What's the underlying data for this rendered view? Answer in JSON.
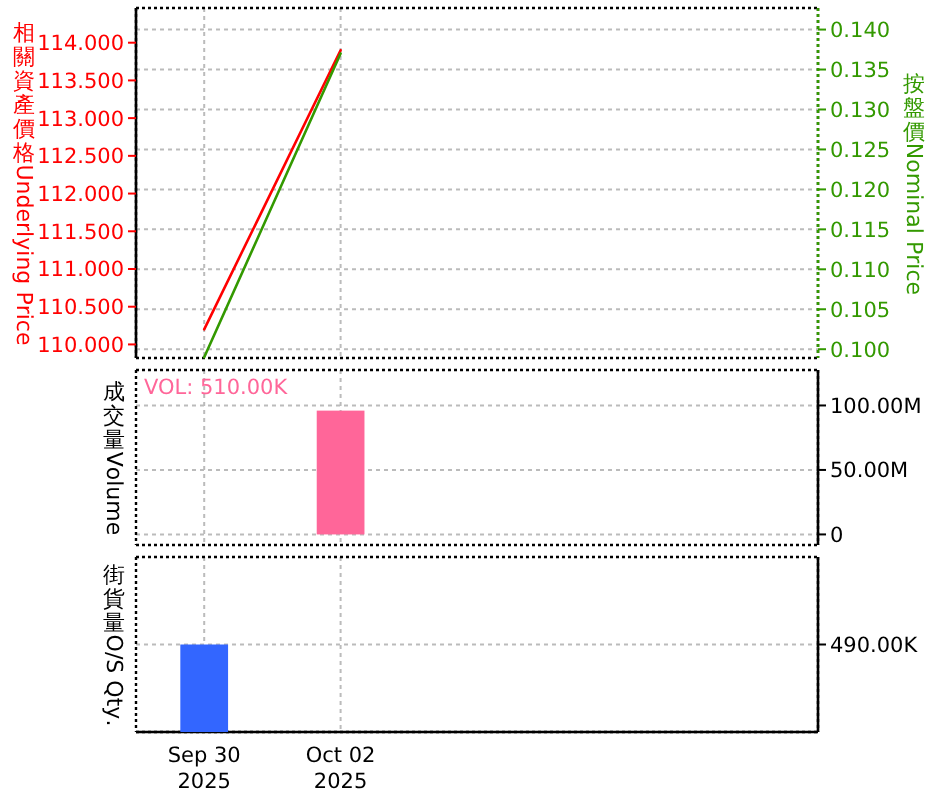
{
  "chart_data": [
    {
      "type": "line",
      "ylabel": "相關資產價格Underlying Price",
      "y2label": "按盤價Nominal Price",
      "x": [
        "2025-09-30",
        "2025-10-02"
      ],
      "xlim": [
        "2025-09-29",
        "2025-10-09"
      ],
      "xticks": [
        {
          "value": "2025-09-30",
          "label": null
        },
        {
          "value": "2025-10-02",
          "label": null
        }
      ],
      "ylim": [
        109.82,
        114.46
      ],
      "yticks": [
        {
          "value": 110,
          "label": "110.000"
        },
        {
          "value": 110.5,
          "label": "110.500"
        },
        {
          "value": 111,
          "label": "111.000"
        },
        {
          "value": 111.5,
          "label": "111.500"
        },
        {
          "value": 112,
          "label": "112.000"
        },
        {
          "value": 112.5,
          "label": "112.500"
        },
        {
          "value": 113,
          "label": "113.000"
        },
        {
          "value": 113.5,
          "label": "113.500"
        },
        {
          "value": 114,
          "label": "114.000"
        }
      ],
      "y2lim": [
        0.0989,
        0.1427
      ],
      "y2ticks": [
        {
          "value": 0.1,
          "label": "0.100"
        },
        {
          "value": 0.105,
          "label": "0.105"
        },
        {
          "value": 0.11,
          "label": "0.110"
        },
        {
          "value": 0.115,
          "label": "0.115"
        },
        {
          "value": 0.12,
          "label": "0.120"
        },
        {
          "value": 0.125,
          "label": "0.125"
        },
        {
          "value": 0.13,
          "label": "0.130"
        },
        {
          "value": 0.135,
          "label": "0.135"
        },
        {
          "value": 0.14,
          "label": "0.140"
        }
      ],
      "series": [
        {
          "color": "#ff0000",
          "values": [
            110.2,
            113.9
          ]
        },
        {
          "color": "#339900",
          "axis": "y2",
          "values": [
            0.099,
            0.137
          ]
        }
      ],
      "grid": true,
      "tick_labels": "y"
    },
    {
      "type": "bar",
      "ylabel": "成交量Volume",
      "annotations": [
        "VOL: 510.00K"
      ],
      "x": [
        "2025-10-02"
      ],
      "xlim": [
        "2025-09-29",
        "2025-10-09"
      ],
      "xticks": [
        {
          "value": "2025-09-30",
          "label": null
        },
        {
          "value": "2025-10-02",
          "label": null
        }
      ],
      "ylim": [
        -8200000,
        127500000
      ],
      "yticks": [
        0,
        {
          "value": 50000000,
          "label": "50.00M"
        },
        {
          "value": 100000000,
          "label": "100.00M"
        }
      ],
      "values": [
        96000000
      ],
      "color": "#ff6699",
      "grid": true,
      "tick_labels": "y"
    },
    {
      "type": "bar",
      "ylabel": "街貨量O/S Qty.",
      "x": [
        "2025-09-30"
      ],
      "xlim": [
        "2025-09-29",
        "2025-10-09"
      ],
      "xticks": [
        {
          "value": "2025-09-30",
          "label": "Sep 30 2025"
        },
        {
          "value": "2025-10-02",
          "label": "Oct 02 2025"
        }
      ],
      "ylim": [
        0,
        980000
      ],
      "yticks": [
        {
          "value": 490000,
          "label": "490.00K"
        }
      ],
      "values": [
        490000
      ],
      "color": "#3366ff",
      "grid": true
    }
  ]
}
